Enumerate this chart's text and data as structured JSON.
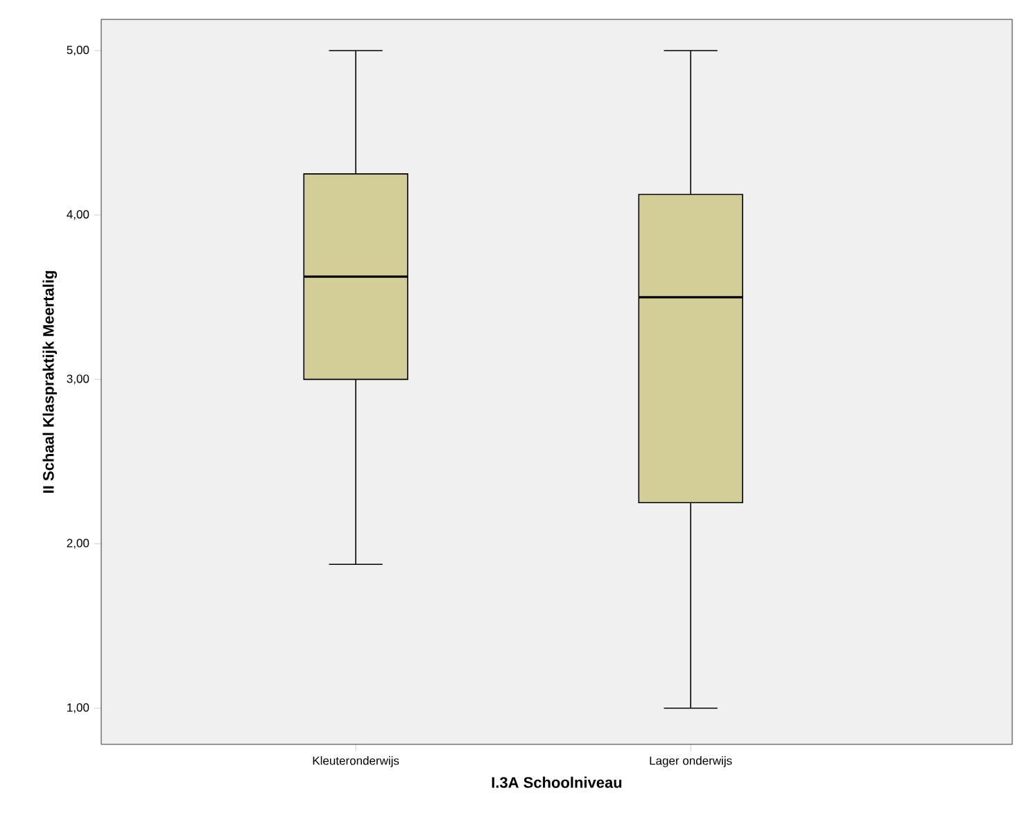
{
  "chart_data": {
    "type": "box",
    "xlabel": "I.3A  Schoolniveau",
    "ylabel": "II Schaal Klaspraktijk Meertalig",
    "categories": [
      "Kleuteronderwijs",
      "Lager onderwijs"
    ],
    "color": "#d3ce97",
    "boxes": [
      {
        "low": 1.875,
        "q1": 3.0,
        "median": 3.625,
        "q3": 4.25,
        "high": 5.0
      },
      {
        "low": 1.0,
        "q1": 2.25,
        "median": 3.5,
        "q3": 4.125,
        "high": 5.0
      }
    ],
    "ylim": [
      0.78,
      5.19
    ],
    "yticks": [
      {
        "value": 1,
        "label": "1,00"
      },
      {
        "value": 2,
        "label": "2,00"
      },
      {
        "value": 3,
        "label": "3,00"
      },
      {
        "value": 4,
        "label": "4,00"
      },
      {
        "value": 5,
        "label": "5,00"
      }
    ]
  }
}
